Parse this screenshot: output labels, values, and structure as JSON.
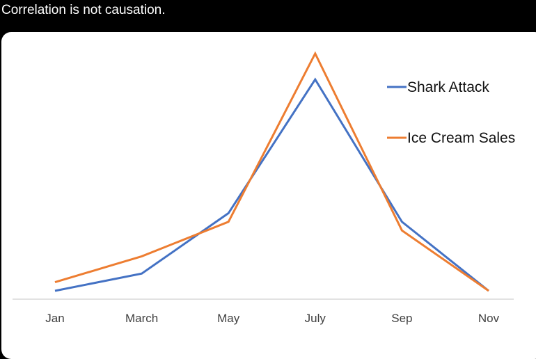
{
  "caption": "Correlation is not causation.",
  "chart_data": {
    "type": "line",
    "title": "",
    "xlabel": "",
    "ylabel": "",
    "categories": [
      "Jan",
      "March",
      "May",
      "July",
      "Sep",
      "Nov"
    ],
    "ylim": [
      0,
      100
    ],
    "grid": false,
    "legend_position": "top-right",
    "series": [
      {
        "name": "Shark Attack",
        "color": "#4472C4",
        "values": [
          0,
          8,
          36,
          98,
          32,
          0
        ]
      },
      {
        "name": "Ice Cream Sales",
        "color": "#ED7D31",
        "values": [
          4,
          16,
          32,
          110,
          28,
          0
        ]
      }
    ]
  }
}
